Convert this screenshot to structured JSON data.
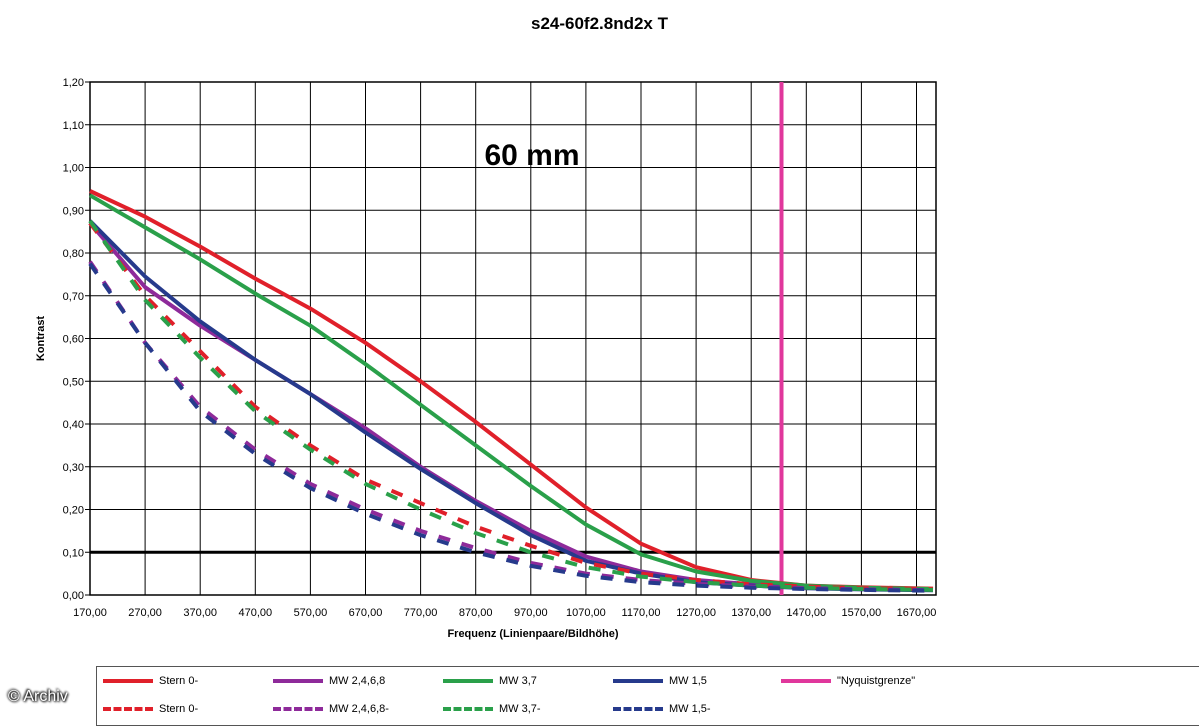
{
  "chart_data": {
    "type": "line",
    "title": "s24-60f2.8nd2x T",
    "annotation": "60 mm",
    "xlabel": "Frequenz (Linienpaare/Bildhöhe)",
    "ylabel": "Kontrast",
    "xlim": [
      170,
      1700
    ],
    "ylim": [
      0,
      1.2
    ],
    "x_ticks": [
      "170,00",
      "270,00",
      "370,00",
      "470,00",
      "570,00",
      "670,00",
      "770,00",
      "870,00",
      "970,00",
      "1070,00",
      "1170,00",
      "1270,00",
      "1370,00",
      "1470,00",
      "1570,00",
      "1670,00"
    ],
    "y_ticks": [
      "0,00",
      "0,10",
      "0,20",
      "0,30",
      "0,40",
      "0,50",
      "0,60",
      "0,70",
      "0,80",
      "0,90",
      "1,00",
      "1,10",
      "1,20"
    ],
    "grid": true,
    "reference_lines": [
      {
        "orientation": "horizontal",
        "value": 0.1,
        "color": "#000000"
      },
      {
        "orientation": "vertical",
        "value": 1425,
        "color": "#e0379c",
        "label": "\"Nyquistgrenze\""
      }
    ],
    "x": [
      170,
      270,
      370,
      470,
      570,
      670,
      770,
      870,
      970,
      1070,
      1170,
      1270,
      1370,
      1470,
      1570,
      1700
    ],
    "series": [
      {
        "name": "Stern 0-",
        "color": "#e0202a",
        "dash": false,
        "values": [
          0.945,
          0.885,
          0.815,
          0.74,
          0.67,
          0.59,
          0.5,
          0.405,
          0.305,
          0.205,
          0.12,
          0.065,
          0.035,
          0.022,
          0.018,
          0.015
        ]
      },
      {
        "name": "MW 2,4,6,8",
        "color": "#8e2a9a",
        "dash": false,
        "values": [
          0.87,
          0.72,
          0.63,
          0.55,
          0.47,
          0.39,
          0.3,
          0.22,
          0.15,
          0.09,
          0.055,
          0.035,
          0.025,
          0.018,
          0.015,
          0.012
        ]
      },
      {
        "name": "MW 3,7",
        "color": "#2aa04a",
        "dash": false,
        "values": [
          0.935,
          0.86,
          0.785,
          0.705,
          0.63,
          0.54,
          0.445,
          0.35,
          0.255,
          0.165,
          0.095,
          0.055,
          0.033,
          0.022,
          0.017,
          0.014
        ]
      },
      {
        "name": "MW 1,5",
        "color": "#263a8c",
        "dash": false,
        "values": [
          0.875,
          0.745,
          0.64,
          0.55,
          0.47,
          0.38,
          0.295,
          0.215,
          0.14,
          0.08,
          0.05,
          0.03,
          0.022,
          0.016,
          0.013,
          0.011
        ]
      },
      {
        "name": "Stern 0-",
        "color": "#e0202a",
        "dash": true,
        "values": [
          0.87,
          0.7,
          0.57,
          0.44,
          0.35,
          0.27,
          0.215,
          0.16,
          0.115,
          0.075,
          0.05,
          0.035,
          0.025,
          0.02,
          0.016,
          0.014
        ]
      },
      {
        "name": "MW 2,4,6,8-",
        "color": "#8e2a9a",
        "dash": true,
        "values": [
          0.78,
          0.59,
          0.44,
          0.34,
          0.26,
          0.2,
          0.15,
          0.11,
          0.075,
          0.05,
          0.035,
          0.026,
          0.02,
          0.016,
          0.013,
          0.011
        ]
      },
      {
        "name": "MW 3,7-",
        "color": "#2aa04a",
        "dash": true,
        "values": [
          0.875,
          0.69,
          0.555,
          0.43,
          0.34,
          0.26,
          0.2,
          0.145,
          0.1,
          0.065,
          0.043,
          0.03,
          0.022,
          0.017,
          0.014,
          0.012
        ]
      },
      {
        "name": "MW 1,5-",
        "color": "#263a8c",
        "dash": true,
        "values": [
          0.775,
          0.59,
          0.43,
          0.33,
          0.25,
          0.19,
          0.14,
          0.1,
          0.068,
          0.045,
          0.03,
          0.022,
          0.017,
          0.014,
          0.012,
          0.01
        ]
      }
    ]
  },
  "legend": {
    "row1": [
      "Stern 0-",
      "MW 2,4,6,8",
      "MW 3,7",
      "MW 1,5",
      "\"Nyquistgrenze\""
    ],
    "row2": [
      "Stern 0-",
      "MW 2,4,6,8-",
      "MW 3,7-",
      "MW 1,5-"
    ]
  },
  "credit": "© Archiv"
}
